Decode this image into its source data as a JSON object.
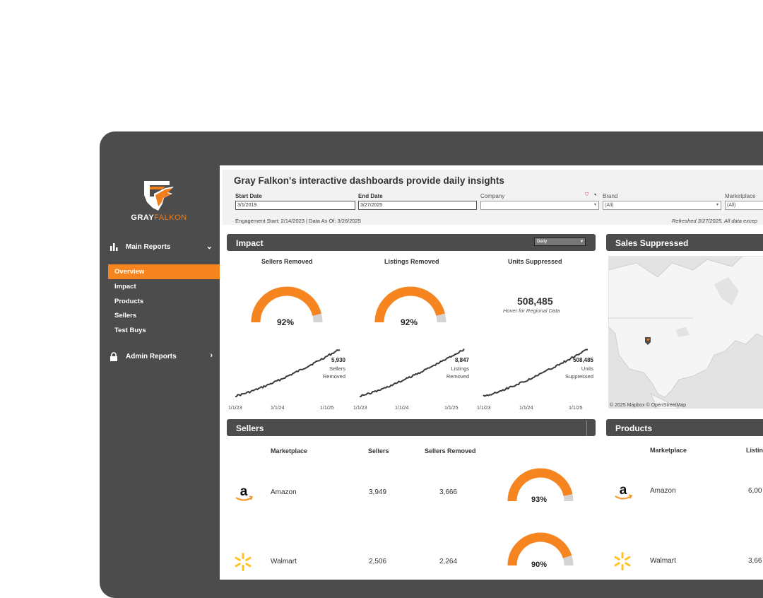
{
  "brand": {
    "name_1": "GRAY",
    "name_2": "FALKON",
    "accent": "#f7851f",
    "dark": "#4b4c4b"
  },
  "nav": {
    "main_reports": "Main Reports",
    "items": [
      "Overview",
      "Impact",
      "Products",
      "Sellers",
      "Test Buys"
    ],
    "active": "Overview",
    "admin_reports": "Admin Reports"
  },
  "filters": {
    "title": "Gray Falkon's interactive dashboards provide daily insights",
    "start_date_label": "Start Date",
    "start_date_value": "3/1/2019",
    "end_date_label": "End Date",
    "end_date_value": "3/27/2025",
    "company_label": "Company",
    "company_value": "",
    "brand_label": "Brand",
    "brand_value": "(All)",
    "marketplace_label": "Marketplace",
    "marketplace_value": "(All)",
    "engagement_note": "Engagement Start: 2/14/2023  |  Data As Of: 3/26/2025",
    "refreshed_note": "Refreshed 3/27/2025. All data excep"
  },
  "impact": {
    "title": "Impact",
    "granularity": "Daily",
    "metrics": [
      {
        "title": "Sellers Removed",
        "gauge_pct": 92,
        "gauge_label": "92%",
        "total": "5,930",
        "total_label_1": "Sellers",
        "total_label_2": "Removed"
      },
      {
        "title": "Listings Removed",
        "gauge_pct": 92,
        "gauge_label": "92%",
        "total": "8,847",
        "total_label_1": "Listings",
        "total_label_2": "Removed"
      },
      {
        "title": "Units Suppressed",
        "big_number": "508,485",
        "hover_note": "Hover for Regional Data",
        "total": "508,485",
        "total_label_1": "Units",
        "total_label_2": "Suppressed"
      }
    ],
    "x_ticks": [
      "1/1/23",
      "1/1/24",
      "1/1/25"
    ]
  },
  "sales_suppressed": {
    "title": "Sales Suppressed",
    "credit": "© 2025 Mapbox © OpenStreetMap"
  },
  "sellers": {
    "title": "Sellers",
    "headers": [
      "Marketplace",
      "Sellers",
      "Sellers Removed"
    ],
    "rows": [
      {
        "marketplace": "Amazon",
        "sellers": "3,949",
        "removed": "3,666",
        "pct": 93,
        "pct_label": "93%",
        "icon": "amazon-logo"
      },
      {
        "marketplace": "Walmart",
        "sellers": "2,506",
        "removed": "2,264",
        "pct": 90,
        "pct_label": "90%",
        "icon": "walmart-logo"
      }
    ]
  },
  "products": {
    "title": "Products",
    "headers": [
      "Marketplace",
      "Listin"
    ],
    "rows": [
      {
        "marketplace": "Amazon",
        "listings": "6,00",
        "icon": "amazon-logo"
      },
      {
        "marketplace": "Walmart",
        "listings": "3,66",
        "icon": "walmart-logo"
      }
    ]
  }
}
